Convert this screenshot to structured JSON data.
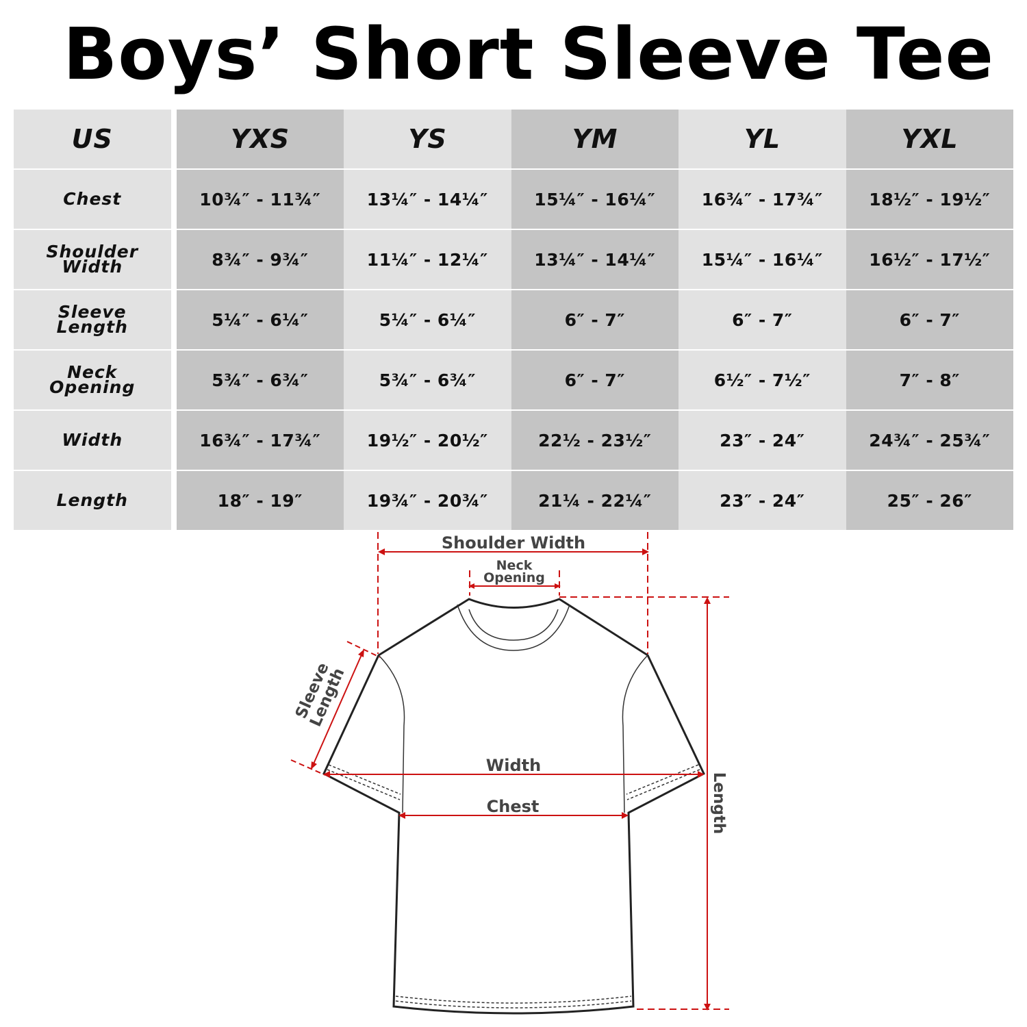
{
  "title": "Boys’ Short Sleeve Tee",
  "table": {
    "header": [
      "US",
      "YXS",
      "YS",
      "YM",
      "YL",
      "YXL"
    ],
    "rows": [
      {
        "label": "Chest",
        "values": [
          "10¾″ - 11¾″",
          "13¼″ - 14¼″",
          "15¼″ - 16¼″",
          "16¾″ - 17¾″",
          "18½″ - 19½″"
        ]
      },
      {
        "label": "Shoulder Width",
        "values": [
          "8¾″ - 9¾″",
          "11¼″ - 12¼″",
          "13¼″ - 14¼″",
          "15¼″ - 16¼″",
          "16½″ - 17½″"
        ]
      },
      {
        "label": "Sleeve Length",
        "values": [
          "5¼″ - 6¼″",
          "5¼″ - 6¼″",
          "6″ - 7″",
          "6″ - 7″",
          "6″ - 7″"
        ]
      },
      {
        "label": "Neck Opening",
        "values": [
          "5¾″ - 6¾″",
          "5¾″ - 6¾″",
          "6″ - 7″",
          "6½″ - 7½″",
          "7″ - 8″"
        ]
      },
      {
        "label": "Width",
        "values": [
          "16¾″ - 17¾″",
          "19½″ - 20½″",
          "22½ - 23½″",
          "23″ - 24″",
          "24¾″ - 25¾″"
        ]
      },
      {
        "label": "Length",
        "values": [
          "18″ - 19″",
          "19¾″ - 20¾″",
          "21¼ - 22¼″",
          "23″ - 24″",
          "25″ - 26″"
        ]
      }
    ]
  },
  "diagram": {
    "shoulder_width": "Shoulder Width",
    "neck_opening_1": "Neck",
    "neck_opening_2": "Opening",
    "sleeve_length_1": "Sleeve",
    "sleeve_length_2": "Length",
    "width": "Width",
    "chest": "Chest",
    "length": "Length",
    "colors": {
      "measure_line": "#cc1111",
      "outline": "#222222",
      "dark_cell": "#c4c4c4",
      "light_cell": "#e2e2e2"
    }
  }
}
